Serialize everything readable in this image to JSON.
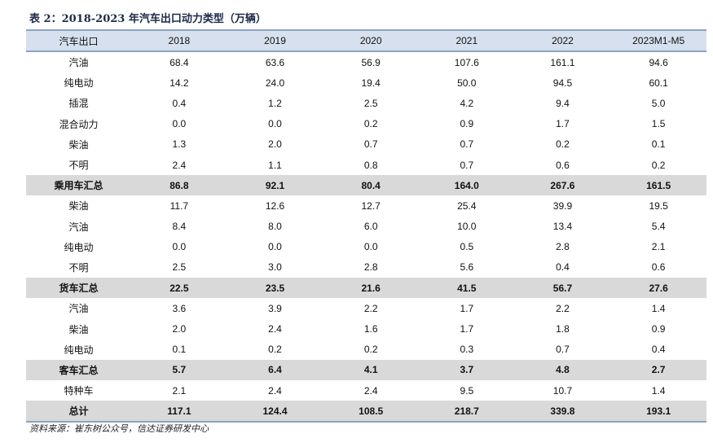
{
  "title": "表 2：2018-2023 年汽车出口动力类型（万辆）",
  "table": {
    "headers": [
      "汽车出口",
      "2018",
      "2019",
      "2020",
      "2021",
      "2022",
      "2023M1-M5"
    ],
    "rows": [
      {
        "label": "汽油",
        "values": [
          "68.4",
          "63.6",
          "56.9",
          "107.6",
          "161.1",
          "94.6"
        ],
        "summary": false
      },
      {
        "label": "纯电动",
        "values": [
          "14.2",
          "24.0",
          "19.4",
          "50.0",
          "94.5",
          "60.1"
        ],
        "summary": false
      },
      {
        "label": "插混",
        "values": [
          "0.4",
          "1.2",
          "2.5",
          "4.2",
          "9.4",
          "5.0"
        ],
        "summary": false
      },
      {
        "label": "混合动力",
        "values": [
          "0.0",
          "0.0",
          "0.2",
          "0.9",
          "1.7",
          "1.5"
        ],
        "summary": false
      },
      {
        "label": "柴油",
        "values": [
          "1.3",
          "2.0",
          "0.7",
          "0.7",
          "0.2",
          "0.1"
        ],
        "summary": false
      },
      {
        "label": "不明",
        "values": [
          "2.4",
          "1.1",
          "0.8",
          "0.7",
          "0.6",
          "0.2"
        ],
        "summary": false
      },
      {
        "label": "乘用车汇总",
        "values": [
          "86.8",
          "92.1",
          "80.4",
          "164.0",
          "267.6",
          "161.5"
        ],
        "summary": true
      },
      {
        "label": "柴油",
        "values": [
          "11.7",
          "12.6",
          "12.7",
          "25.4",
          "39.9",
          "19.5"
        ],
        "summary": false
      },
      {
        "label": "汽油",
        "values": [
          "8.4",
          "8.0",
          "6.0",
          "10.0",
          "13.4",
          "5.4"
        ],
        "summary": false
      },
      {
        "label": "纯电动",
        "values": [
          "0.0",
          "0.0",
          "0.0",
          "0.5",
          "2.8",
          "2.1"
        ],
        "summary": false
      },
      {
        "label": "不明",
        "values": [
          "2.5",
          "3.0",
          "2.8",
          "5.6",
          "0.4",
          "0.6"
        ],
        "summary": false
      },
      {
        "label": "货车汇总",
        "values": [
          "22.5",
          "23.5",
          "21.6",
          "41.5",
          "56.7",
          "27.6"
        ],
        "summary": true
      },
      {
        "label": "汽油",
        "values": [
          "3.6",
          "3.9",
          "2.2",
          "1.7",
          "2.2",
          "1.4"
        ],
        "summary": false
      },
      {
        "label": "柴油",
        "values": [
          "2.0",
          "2.4",
          "1.6",
          "1.7",
          "1.8",
          "0.9"
        ],
        "summary": false
      },
      {
        "label": "纯电动",
        "values": [
          "0.1",
          "0.2",
          "0.2",
          "0.3",
          "0.7",
          "0.4"
        ],
        "summary": false
      },
      {
        "label": "客车汇总",
        "values": [
          "5.7",
          "6.4",
          "4.1",
          "3.7",
          "4.8",
          "2.7"
        ],
        "summary": true
      },
      {
        "label": "特种车",
        "values": [
          "2.1",
          "2.4",
          "2.4",
          "9.5",
          "10.7",
          "1.4"
        ],
        "summary": false
      },
      {
        "label": "总计",
        "values": [
          "117.1",
          "124.4",
          "108.5",
          "218.7",
          "339.8",
          "193.1"
        ],
        "summary": true
      }
    ]
  },
  "source": "资料来源：崔东树公众号，信达证券研发中心"
}
